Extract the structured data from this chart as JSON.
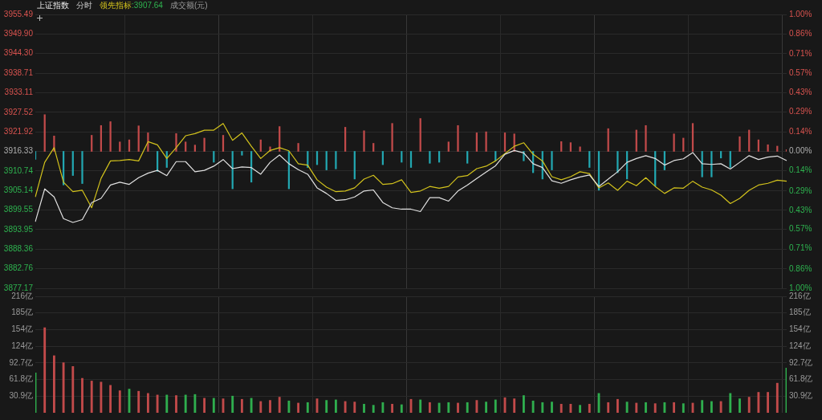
{
  "chart_data": [
    {
      "type": "line",
      "title": "上证指数",
      "subtitle": "分时",
      "annotations": [
        "领先指标:3907.64",
        "成交额(元)"
      ],
      "grid": true,
      "tick_labels": "y",
      "marker": "none",
      "line_style": "solid",
      "categories": [
        null,
        null,
        null,
        null,
        null,
        null,
        null,
        null,
        null,
        null,
        null,
        null,
        null,
        null,
        null,
        null,
        null,
        null,
        null,
        null,
        null,
        null,
        null,
        null,
        null,
        null,
        null,
        null,
        null,
        null,
        null,
        null,
        null,
        null,
        null,
        null,
        null,
        null,
        null,
        null,
        null,
        null,
        null,
        null,
        null,
        null,
        null,
        null,
        null,
        null,
        null,
        null,
        null,
        null,
        null,
        null,
        null,
        null,
        null,
        null,
        null,
        null,
        null,
        null,
        null,
        null,
        null,
        null,
        null,
        null,
        null,
        null,
        null,
        null,
        null,
        null,
        null,
        null,
        null,
        null,
        null
      ],
      "ylim": [
        3877.17,
        3955.49
      ],
      "yticks": [
        3877.17,
        3882.76,
        3888.36,
        3893.95,
        3899.55,
        3905.14,
        3910.74,
        3916.33,
        3921.92,
        3927.52,
        3933.11,
        3938.71,
        {
          "value": 3944.3,
          "label": "3944.30"
        },
        {
          "value": 3949.9,
          "label": "3949.90"
        },
        3955.49
      ],
      "y2lim": [
        -1,
        1
      ],
      "y2ticks": [
        {
          "value": -1,
          "label": "1.00%"
        },
        {
          "value": -0.86,
          "label": "0.86%"
        },
        {
          "value": -0.71,
          "label": "0.71%"
        },
        {
          "value": -0.57,
          "label": "0.57%"
        },
        {
          "value": -0.43,
          "label": "0.43%"
        },
        {
          "value": -0.29,
          "label": "0.29%"
        },
        {
          "value": -0.14,
          "label": "0.14%"
        },
        {
          "value": 0,
          "label": "0.00%"
        },
        {
          "value": 0.14,
          "label": "0.14%"
        },
        {
          "value": 0.29,
          "label": "0.29%"
        },
        {
          "value": 0.43,
          "label": "0.43%"
        },
        {
          "value": 0.57,
          "label": "0.57%"
        },
        {
          "value": 0.71,
          "label": "0.71%"
        },
        {
          "value": 0.86,
          "label": "0.86%"
        },
        {
          "value": 1,
          "label": "1.00%"
        }
      ],
      "series": [
        {
          "type": "bar",
          "values": [
            -2.3,
            10.5,
            4.4,
            -9.6,
            -6.9,
            -9.2,
            4.6,
            7.4,
            8.5,
            2.7,
            3.3,
            7.3,
            5.3,
            -5.7,
            -4.6,
            5.1,
            2.7,
            1.8,
            3.8,
            -3.1,
            4.6,
            -10.7,
            -1.1,
            -8.8,
            3.3,
            1.3,
            7.1,
            -10.7,
            2.3,
            -4.6,
            -3.8,
            -5.3,
            -5.0,
            6.9,
            -7.9,
            5.9,
            2.3,
            -3.8,
            8.0,
            -3.1,
            -4.6,
            9.4,
            -3.4,
            -3.1,
            2.7,
            7.4,
            -3.4,
            5.3,
            5.6,
            -2.7,
            5.3,
            5.0,
            -2.7,
            -6.1,
            -7.9,
            -5.3,
            2.8,
            2.5,
            1.3,
            -4.6,
            -11.1,
            6.5,
            -6.1,
            -7.9,
            6.1,
            7.4,
            -9.9,
            -5.3,
            5.0,
            3.8,
            8.0,
            -7.3,
            -7.3,
            -1.9,
            -4.6,
            4.2,
            6.1,
            3.3,
            1.9,
            1.5,
            0.5
          ],
          "base": [
            3916.33,
            3916.33,
            3916.33,
            3916.33,
            3916.33,
            3916.33,
            3916.33,
            3916.33,
            3916.33,
            3916.33,
            3916.33,
            3916.33,
            3916.33,
            3916.33,
            3916.33,
            3916.33,
            3916.33,
            3916.33,
            3916.33,
            3916.33,
            3916.33,
            3916.33,
            3916.33,
            3916.33,
            3916.33,
            3916.33,
            3916.33,
            3916.33,
            3916.33,
            3916.33,
            3916.33,
            3916.33,
            3916.33,
            3916.33,
            3916.33,
            3916.33,
            3916.33,
            3916.33,
            3916.33,
            3916.33,
            3916.33,
            3916.33,
            3916.33,
            3916.33,
            3916.33,
            3916.33,
            3916.33,
            3916.33,
            3916.33,
            3916.33,
            3916.33,
            3916.33,
            3916.33,
            3916.33,
            3916.33,
            3916.33,
            3916.33,
            3916.33,
            3916.33,
            3916.33,
            3916.33,
            3916.33,
            3916.33,
            3916.33,
            3916.33,
            3916.33,
            3916.33,
            3916.33,
            3916.33,
            3916.33,
            3916.33,
            3916.33,
            3916.33,
            3916.33,
            3916.33,
            3916.33,
            3916.33,
            3916.33,
            3916.33,
            3916.33,
            3916.33
          ],
          "colors": [
            "#22a6b0",
            "#c24a4a",
            "#c24a4a",
            "#22a6b0",
            "#22a6b0",
            "#22a6b0",
            "#c24a4a",
            "#c24a4a",
            "#c24a4a",
            "#c24a4a",
            "#c24a4a",
            "#c24a4a",
            "#c24a4a",
            "#22a6b0",
            "#22a6b0",
            "#c24a4a",
            "#c24a4a",
            "#c24a4a",
            "#c24a4a",
            "#22a6b0",
            "#c24a4a",
            "#22a6b0",
            "#22a6b0",
            "#22a6b0",
            "#c24a4a",
            "#c24a4a",
            "#c24a4a",
            "#22a6b0",
            "#c24a4a",
            "#22a6b0",
            "#22a6b0",
            "#22a6b0",
            "#22a6b0",
            "#c24a4a",
            "#22a6b0",
            "#c24a4a",
            "#c24a4a",
            "#22a6b0",
            "#c24a4a",
            "#22a6b0",
            "#22a6b0",
            "#c24a4a",
            "#22a6b0",
            "#22a6b0",
            "#c24a4a",
            "#c24a4a",
            "#22a6b0",
            "#c24a4a",
            "#c24a4a",
            "#22a6b0",
            "#c24a4a",
            "#c24a4a",
            "#22a6b0",
            "#22a6b0",
            "#22a6b0",
            "#22a6b0",
            "#c24a4a",
            "#c24a4a",
            "#c24a4a",
            "#22a6b0",
            "#22a6b0",
            "#c24a4a",
            "#22a6b0",
            "#22a6b0",
            "#c24a4a",
            "#c24a4a",
            "#22a6b0",
            "#22a6b0",
            "#c24a4a",
            "#c24a4a",
            "#c24a4a",
            "#22a6b0",
            "#22a6b0",
            "#22a6b0",
            "#22a6b0",
            "#c24a4a",
            "#c24a4a",
            "#c24a4a",
            "#c24a4a",
            "#c24a4a",
            "#c24a4a"
          ]
        },
        {
          "type": "line",
          "color": "#e0e0e0",
          "values": [
            3896.2,
            3905.6,
            3903.3,
            3897.1,
            3896.0,
            3896.8,
            3901.7,
            3902.9,
            3906.7,
            3907.5,
            3906.9,
            3908.8,
            3910.1,
            3910.9,
            3909.4,
            3913.4,
            3913.4,
            3910.5,
            3910.9,
            3912.1,
            3914.0,
            3911.4,
            3911.9,
            3911.7,
            3909.8,
            3913.2,
            3915.3,
            3912.8,
            3911.1,
            3909.8,
            3905.9,
            3904.3,
            3902.3,
            3902.5,
            3903.3,
            3905.0,
            3905.3,
            3901.7,
            3900.2,
            3899.8,
            3899.8,
            3899.1,
            3903.1,
            3903.1,
            3902.1,
            3905.0,
            3906.7,
            3908.6,
            3910.4,
            3912.2,
            3915.5,
            3916.6,
            3915.9,
            3912.8,
            3911.7,
            3907.9,
            3907.2,
            3908.2,
            3909.0,
            3909.6,
            3906.3,
            3908.4,
            3910.5,
            3913.2,
            3914.3,
            3915.1,
            3914.3,
            3912.4,
            3913.7,
            3914.2,
            3916.0,
            3912.8,
            3912.6,
            3912.8,
            3911.3,
            3913.2,
            3915.1,
            3914.0,
            3914.7,
            3915.0,
            3913.7
          ]
        },
        {
          "type": "line",
          "color": "#d2c21c",
          "values": [
            3903.3,
            3913.2,
            3917.4,
            3907.5,
            3904.8,
            3905.2,
            3900.2,
            3908.6,
            3913.6,
            3913.7,
            3914.0,
            3913.6,
            3919.1,
            3918.2,
            3914.3,
            3917.4,
            3920.8,
            3921.4,
            3922.4,
            3922.4,
            3924.3,
            3919.5,
            3921.6,
            3917.8,
            3914.3,
            3916.6,
            3917.4,
            3916.5,
            3912.8,
            3912.4,
            3908.2,
            3906.1,
            3904.8,
            3905.0,
            3905.9,
            3908.4,
            3909.5,
            3906.9,
            3907.1,
            3908.2,
            3904.6,
            3905.0,
            3906.3,
            3905.8,
            3906.3,
            3909.0,
            3909.4,
            3911.4,
            3912.1,
            3913.6,
            3915.7,
            3917.8,
            3918.8,
            3915.5,
            3913.6,
            3909.1,
            3908.2,
            3909.1,
            3910.5,
            3910.0,
            3905.9,
            3907.3,
            3905.2,
            3907.8,
            3906.5,
            3908.8,
            3906.3,
            3904.3,
            3905.9,
            3905.8,
            3907.8,
            3906.1,
            3905.3,
            3903.8,
            3901.4,
            3902.9,
            3905.2,
            3906.7,
            3907.2,
            3908.1,
            3907.8
          ]
        }
      ]
    },
    {
      "type": "bar",
      "grid": true,
      "tick_labels": "y",
      "categories": [
        null,
        null,
        null,
        null,
        null,
        null,
        null,
        null,
        null,
        null,
        null,
        null,
        null,
        null,
        null,
        null,
        null,
        null,
        null,
        null,
        null,
        null,
        null,
        null,
        null,
        null,
        null,
        null,
        null,
        null,
        null,
        null,
        null,
        null,
        null,
        null,
        null,
        null,
        null,
        null,
        null,
        null,
        null,
        null,
        null,
        null,
        null,
        null,
        null,
        null,
        null,
        null,
        null,
        null,
        null,
        null,
        null,
        null,
        null,
        null,
        null,
        null,
        null,
        null,
        null,
        null,
        null,
        null,
        null,
        null,
        null,
        null,
        null,
        null,
        null,
        null,
        null,
        null,
        null,
        null,
        null
      ],
      "ylim": [
        0,
        216.3
      ],
      "yticks": [
        {
          "value": 30.9,
          "label": "30.9亿"
        },
        {
          "value": 61.8,
          "label": "61.8亿"
        },
        {
          "value": 92.7,
          "label": "92.7亿"
        },
        {
          "value": 123.6,
          "label": "124亿"
        },
        {
          "value": 154.5,
          "label": "154亿"
        },
        {
          "value": 185.4,
          "label": "185亿"
        },
        {
          "value": 216.3,
          "label": "216亿"
        }
      ],
      "y2lim": [
        0,
        216.3
      ],
      "y2ticks": [
        {
          "value": 30.9,
          "label": "30.9亿"
        },
        {
          "value": 61.8,
          "label": "61.8亿"
        },
        {
          "value": 92.7,
          "label": "92.7亿"
        },
        {
          "value": 123.6,
          "label": "124亿"
        },
        {
          "value": 154.5,
          "label": "154亿"
        },
        {
          "value": 185.4,
          "label": "185亿"
        },
        {
          "value": 216.3,
          "label": "216亿"
        }
      ],
      "values": [
        74,
        158,
        106,
        93,
        86,
        64,
        59,
        57,
        51,
        41,
        44,
        40,
        36,
        33,
        33,
        32,
        33,
        34,
        27,
        27,
        26,
        31,
        25,
        27,
        21,
        23,
        29,
        22,
        18,
        19,
        26,
        23,
        24,
        21,
        20,
        16,
        14,
        19,
        16,
        15,
        25,
        24,
        19,
        18,
        19,
        18,
        19,
        23,
        20,
        24,
        28,
        26,
        32,
        22,
        19,
        20,
        16,
        16,
        14,
        16,
        36,
        19,
        25,
        20,
        18,
        19,
        17,
        19,
        19,
        17,
        18,
        23,
        21,
        21,
        36,
        26,
        29,
        38,
        38,
        55,
        83
      ],
      "colors": [
        "#2fae4e",
        "#c24a4a",
        "#c24a4a",
        "#c24a4a",
        "#c24a4a",
        "#c24a4a",
        "#c24a4a",
        "#c24a4a",
        "#c24a4a",
        "#c24a4a",
        "#2fae4e",
        "#c24a4a",
        "#c24a4a",
        "#c24a4a",
        "#2fae4e",
        "#c24a4a",
        "#2fae4e",
        "#2fae4e",
        "#c24a4a",
        "#2fae4e",
        "#c24a4a",
        "#2fae4e",
        "#c24a4a",
        "#2fae4e",
        "#c24a4a",
        "#c24a4a",
        "#c24a4a",
        "#2fae4e",
        "#c24a4a",
        "#2fae4e",
        "#c24a4a",
        "#2fae4e",
        "#2fae4e",
        "#c24a4a",
        "#c24a4a",
        "#2fae4e",
        "#2fae4e",
        "#2fae4e",
        "#c24a4a",
        "#2fae4e",
        "#c24a4a",
        "#2fae4e",
        "#c24a4a",
        "#2fae4e",
        "#2fae4e",
        "#c24a4a",
        "#2fae4e",
        "#c24a4a",
        "#2fae4e",
        "#2fae4e",
        "#c24a4a",
        "#c24a4a",
        "#2fae4e",
        "#2fae4e",
        "#2fae4e",
        "#2fae4e",
        "#c24a4a",
        "#c24a4a",
        "#2fae4e",
        "#c24a4a",
        "#2fae4e",
        "#c24a4a",
        "#c24a4a",
        "#2fae4e",
        "#c24a4a",
        "#2fae4e",
        "#c24a4a",
        "#2fae4e",
        "#c24a4a",
        "#2fae4e",
        "#c24a4a",
        "#2fae4e",
        "#2fae4e",
        "#c24a4a",
        "#2fae4e",
        "#2fae4e",
        "#c24a4a",
        "#c24a4a",
        "#c24a4a",
        "#c24a4a",
        "#2fae4e"
      ]
    }
  ]
}
